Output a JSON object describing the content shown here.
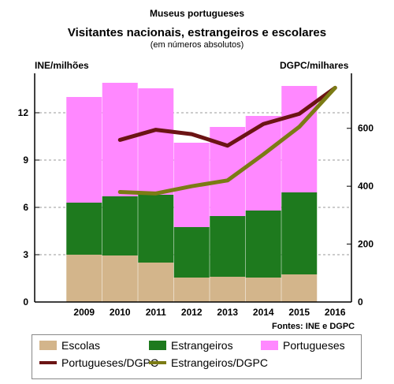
{
  "chart_data": {
    "type": "bar",
    "suptitle": "Museus portugueses",
    "title": "Visitantes nacionais, estrangeiros e escolares",
    "subtitle": "(em números absolutos)",
    "ylabel_left": "INE/milhões",
    "ylabel_right": "DGPC/milhares",
    "source": "Fontes: INE e DGPC",
    "categories": [
      "2009",
      "2010",
      "2011",
      "2012",
      "2013",
      "2014",
      "2015",
      "2016"
    ],
    "ylim_left": [
      0,
      14.5
    ],
    "yticks_left": [
      0,
      3,
      6,
      9,
      12
    ],
    "ylim_right": [
      0,
      790
    ],
    "yticks_right": [
      0,
      200,
      400,
      600
    ],
    "grid": true,
    "bar_series": [
      {
        "name": "Escolas",
        "color": "#D3B58B",
        "values": [
          3.0,
          2.95,
          2.5,
          1.55,
          1.6,
          1.55,
          1.75,
          null
        ]
      },
      {
        "name": "Estrangeiros",
        "color": "#1E7A1E",
        "values": [
          3.3,
          3.75,
          4.3,
          3.2,
          3.85,
          4.25,
          5.2,
          null
        ]
      },
      {
        "name": "Portugueses",
        "color": "#FF88FF",
        "values": [
          6.7,
          7.2,
          6.75,
          5.35,
          5.65,
          6.0,
          6.75,
          null
        ]
      }
    ],
    "line_series": [
      {
        "name": "Portugueses/DGPC",
        "color": "#6B1414",
        "values": [
          null,
          560,
          595,
          580,
          540,
          615,
          650,
          740
        ]
      },
      {
        "name": "Estrangeiros/DGPC",
        "color": "#7B7B14",
        "values": [
          null,
          380,
          375,
          400,
          420,
          510,
          605,
          740
        ]
      }
    ]
  },
  "legend": {
    "escolas": "Escolas",
    "estrangeiros": "Estrangeiros",
    "portugueses": "Portugueses",
    "portugueses_dgpc": "Portugueses/DGPC",
    "estrangeiros_dgpc": "Estrangeiros/DGPC"
  }
}
